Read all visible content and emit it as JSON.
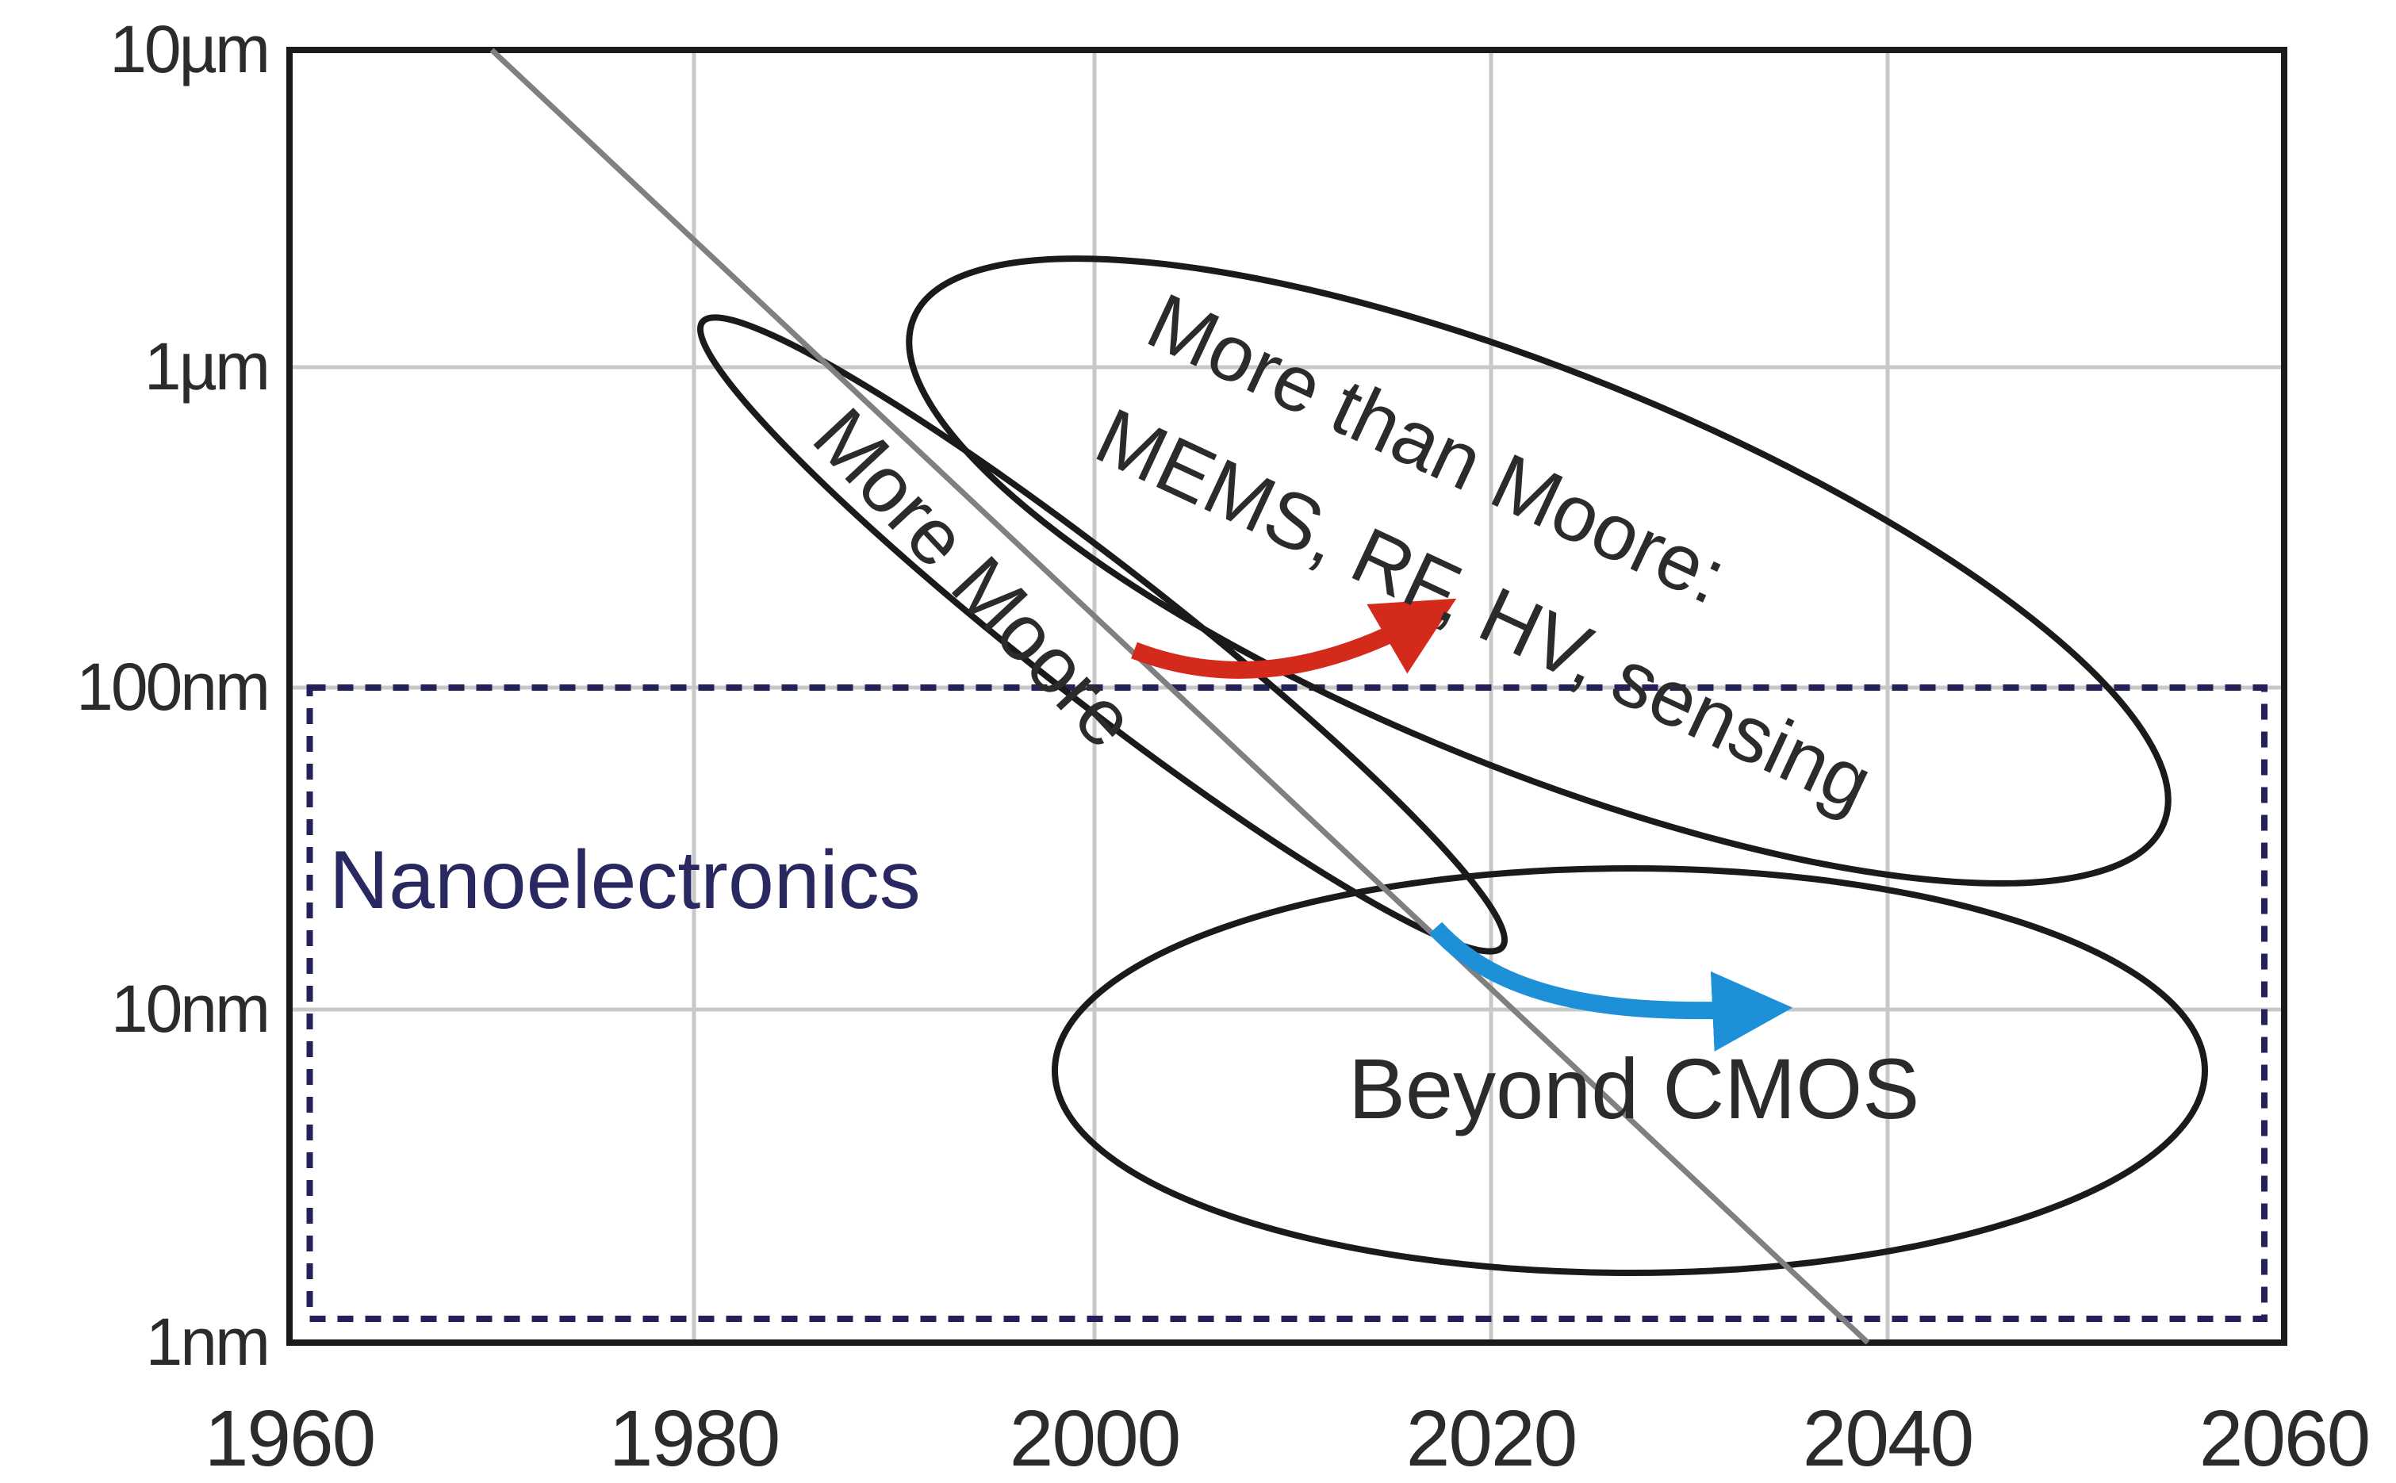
{
  "chart_data": {
    "type": "line",
    "x_axis": {
      "ticks": [
        1960,
        1980,
        2000,
        2020,
        2040,
        2060
      ],
      "range": [
        1960,
        2060
      ]
    },
    "y_axis": {
      "scale": "log",
      "unit": "m",
      "ticks": [
        {
          "value": 1e-05,
          "label": "10µm"
        },
        {
          "value": 1e-06,
          "label": "1µm"
        },
        {
          "value": 1e-07,
          "label": "100nm"
        },
        {
          "value": 1e-08,
          "label": "10nm"
        },
        {
          "value": 1e-09,
          "label": "1nm"
        }
      ],
      "range": [
        1e-09,
        1e-05
      ]
    },
    "grid": true,
    "series": [
      {
        "points": [
          {
            "x": 1970,
            "y": 1e-05
          },
          {
            "x": 2039,
            "y": 1e-09
          }
        ],
        "color": "#808080"
      }
    ],
    "regions": [
      {
        "id": "nanoelectronics",
        "label": "Nanoelectronics",
        "shape": "dashed-rectangle",
        "color": "#23205a",
        "x_range": [
          1961,
          2059
        ],
        "y_range": [
          1e-09,
          1e-07
        ]
      },
      {
        "id": "more-moore",
        "label": "More Moore",
        "shape": "ellipse",
        "color": "#1a1a1a"
      },
      {
        "id": "more-than-moore",
        "label_lines": [
          "More than Moore:",
          "MEMS, RF, HV, sensing"
        ],
        "shape": "ellipse",
        "color": "#1a1a1a"
      },
      {
        "id": "beyond-cmos",
        "label": "Beyond CMOS",
        "shape": "ellipse",
        "color": "#1a1a1a"
      }
    ],
    "arrows": [
      {
        "id": "to-more-than-moore",
        "color": "#d42a1c",
        "from": {
          "x": 2002,
          "y": 1.2e-07
        },
        "to": {
          "x": 2020,
          "y": 2.3e-07
        }
      },
      {
        "id": "to-beyond-cmos",
        "color": "#1e90d8",
        "from": {
          "x": 2018,
          "y": 1.8e-08
        },
        "to": {
          "x": 2039,
          "y": 1e-08
        }
      }
    ]
  }
}
